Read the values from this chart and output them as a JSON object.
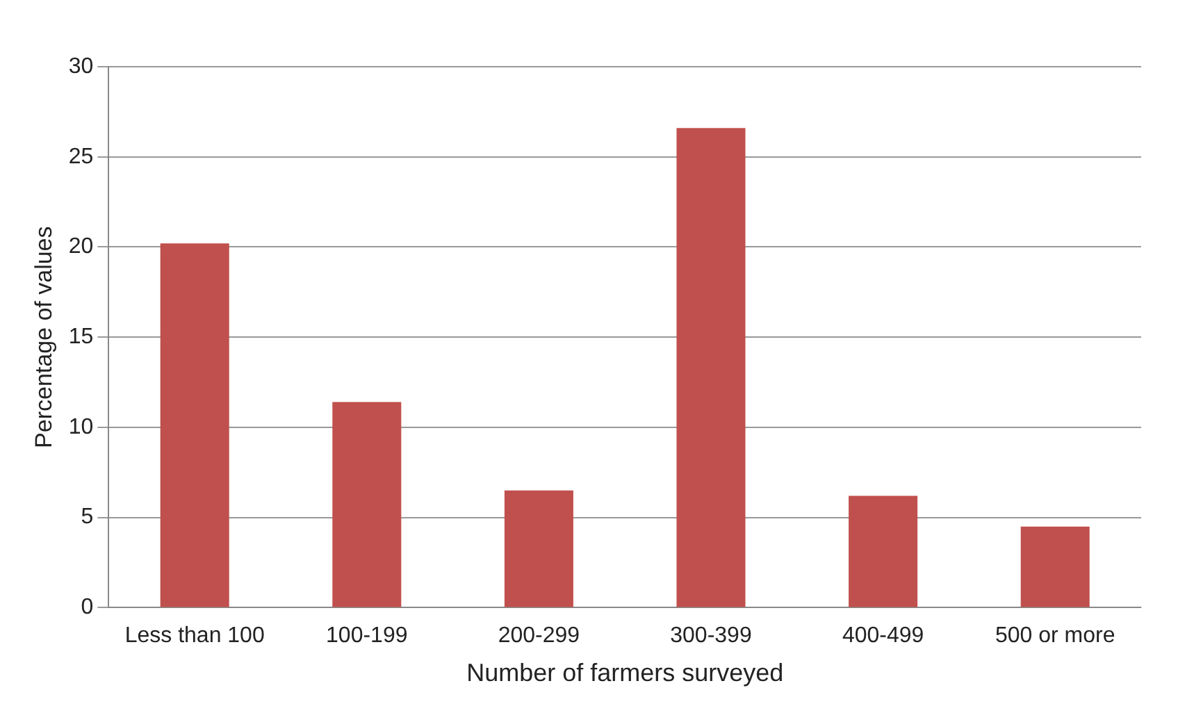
{
  "chart_data": {
    "type": "bar",
    "xlabel": "Number of farmers surveyed",
    "ylabel": "Percentage of values",
    "categories": [
      "Less than 100",
      "100-199",
      "200-299",
      "300-399",
      "400-499",
      "500 or more"
    ],
    "values": [
      20.2,
      11.4,
      6.5,
      26.6,
      6.2,
      4.5
    ],
    "color": "#c0504d",
    "ylim": [
      0,
      30
    ],
    "yticks": [
      0,
      5,
      10,
      15,
      20,
      25,
      30
    ],
    "grid": "y",
    "legend": false
  }
}
